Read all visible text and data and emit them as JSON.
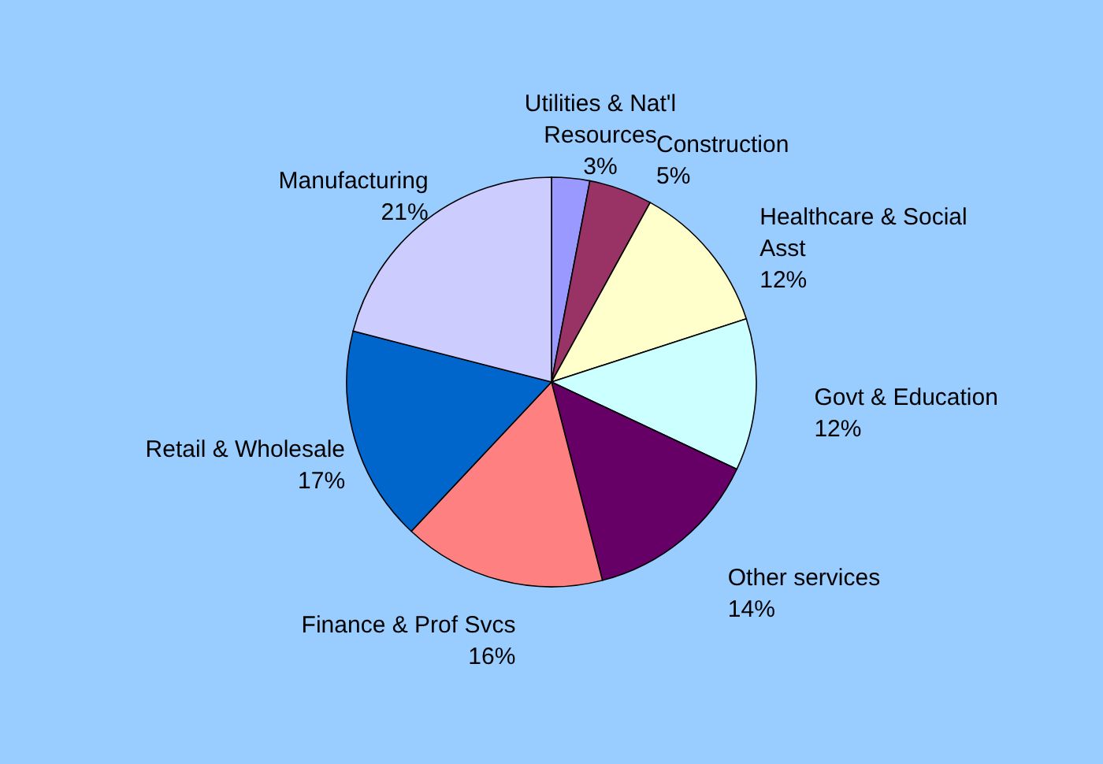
{
  "chart_data": {
    "type": "pie",
    "categories": [
      "Utilities & Nat'l Resources",
      "Construction",
      "Healthcare & Social Asst",
      "Govt & Education",
      "Other services",
      "Finance & Prof Svcs",
      "Retail & Wholesale",
      "Manufacturing"
    ],
    "values": [
      3,
      5,
      12,
      12,
      14,
      16,
      17,
      21
    ],
    "value_labels": [
      "3%",
      "5%",
      "12%",
      "12%",
      "14%",
      "16%",
      "17%",
      "21%"
    ],
    "colors": [
      "#9999ff",
      "#993366",
      "#ffffcc",
      "#ccffff",
      "#660066",
      "#ff8080",
      "#0066cc",
      "#ccccff"
    ]
  }
}
